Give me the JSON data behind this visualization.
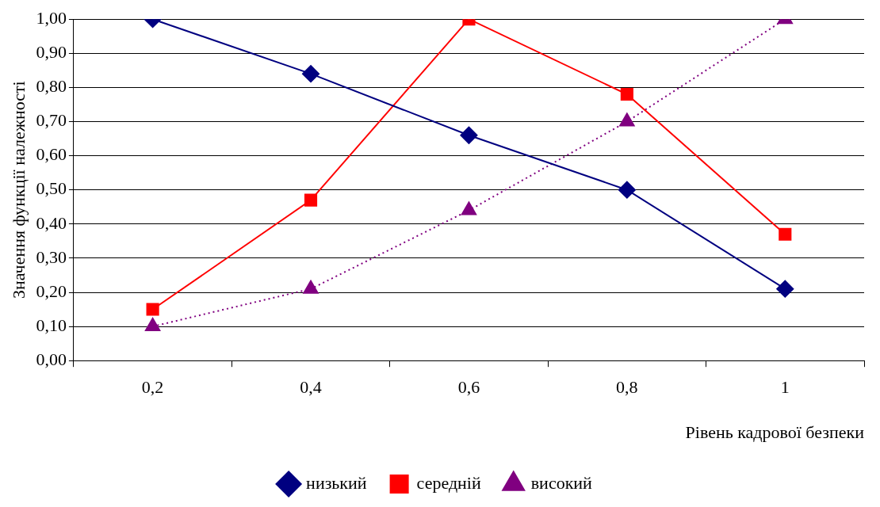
{
  "chart_data": {
    "type": "line",
    "xlabel": "Рівень кадрової безпеки",
    "ylabel": "Значення функції належності",
    "categories": [
      "0,2",
      "0,4",
      "0,6",
      "0,8",
      "1"
    ],
    "series": [
      {
        "name": "низький",
        "color": "#000080",
        "marker": "diamond",
        "line_style": "solid",
        "values": [
          1.0,
          0.84,
          0.66,
          0.5,
          0.21
        ]
      },
      {
        "name": "середній",
        "color": "#ff0000",
        "marker": "square",
        "line_style": "solid",
        "values": [
          0.15,
          0.47,
          1.0,
          0.78,
          0.37
        ]
      },
      {
        "name": "високий",
        "color": "#800080",
        "marker": "triangle",
        "line_style": "dotted",
        "values": [
          0.1,
          0.21,
          0.44,
          0.7,
          1.0
        ]
      }
    ],
    "ylim": [
      0,
      1
    ],
    "yticks": [
      {
        "value": 0,
        "label": "0,00"
      },
      {
        "value": 0.1,
        "label": "0,10"
      },
      {
        "value": 0.2,
        "label": "0,20"
      },
      {
        "value": 0.3,
        "label": "0,30"
      },
      {
        "value": 0.4,
        "label": "0,40"
      },
      {
        "value": 0.5,
        "label": "0,50"
      },
      {
        "value": 0.6,
        "label": "0,60"
      },
      {
        "value": 0.7,
        "label": "0,70"
      },
      {
        "value": 0.8,
        "label": "0,80"
      },
      {
        "value": 0.9,
        "label": "0,90"
      },
      {
        "value": 1,
        "label": "1,00"
      }
    ],
    "grid": "y",
    "legend": "bottom"
  }
}
